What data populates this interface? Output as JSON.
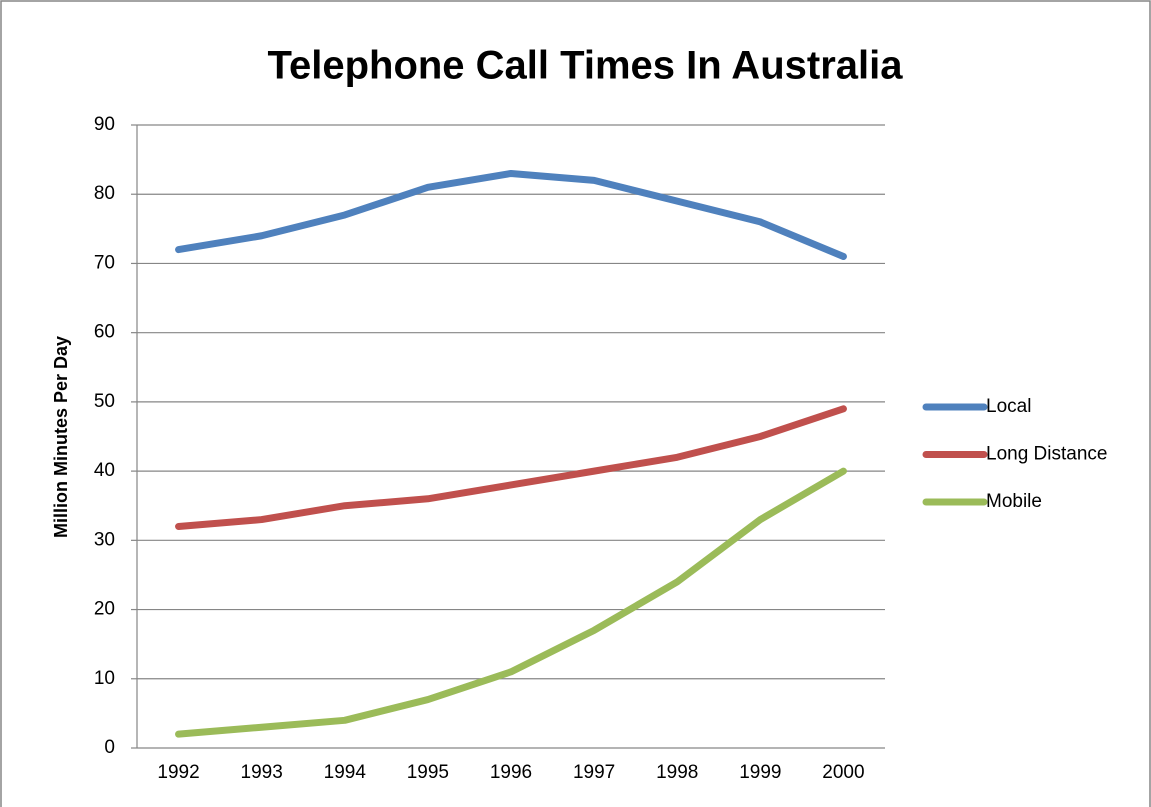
{
  "chart_data": {
    "type": "line",
    "title": "Telephone Call Times In Australia",
    "y_label": "Million Minutes Per Day",
    "categories": [
      "1992",
      "1993",
      "1994",
      "1995",
      "1996",
      "1997",
      "1998",
      "1999",
      "2000"
    ],
    "series": [
      {
        "name": "Local",
        "color": "#4f81bd",
        "values": [
          72,
          74,
          77,
          81,
          83,
          82,
          79,
          76,
          71
        ]
      },
      {
        "name": "Long Distance",
        "color": "#c0504d",
        "values": [
          32,
          33,
          35,
          36,
          38,
          40,
          42,
          45,
          49
        ]
      },
      {
        "name": "Mobile",
        "color": "#9bbb59",
        "values": [
          2,
          3,
          4,
          7,
          11,
          17,
          24,
          33,
          40
        ]
      }
    ],
    "ylim": [
      0,
      90
    ],
    "yticks": [
      0,
      10,
      20,
      30,
      40,
      50,
      60,
      70,
      80,
      90
    ],
    "grid": true,
    "legend": "right"
  }
}
